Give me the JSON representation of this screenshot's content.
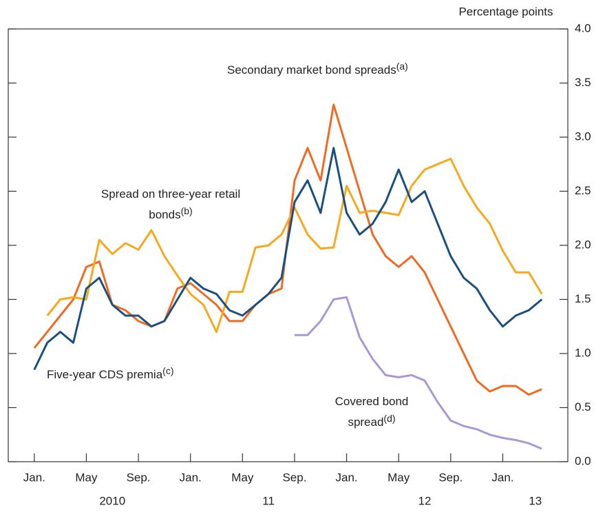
{
  "chart_data": {
    "type": "line",
    "y_axis_label": "Percentage points",
    "x": [
      "2010-01",
      "2010-02",
      "2010-03",
      "2010-04",
      "2010-05",
      "2010-06",
      "2010-07",
      "2010-08",
      "2010-09",
      "2010-10",
      "2010-11",
      "2010-12",
      "2011-01",
      "2011-02",
      "2011-03",
      "2011-04",
      "2011-05",
      "2011-06",
      "2011-07",
      "2011-08",
      "2011-09",
      "2011-10",
      "2011-11",
      "2011-12",
      "2012-01",
      "2012-02",
      "2012-03",
      "2012-04",
      "2012-05",
      "2012-06",
      "2012-07",
      "2012-08",
      "2012-09",
      "2012-10",
      "2012-11",
      "2012-12",
      "2013-01",
      "2013-02",
      "2013-03",
      "2013-04"
    ],
    "xlim": [
      "2009-11",
      "2013-06"
    ],
    "xticks": [
      {
        "value": "2010-01",
        "label": "Jan."
      },
      {
        "value": "2010-05",
        "label": "May"
      },
      {
        "value": "2010-09",
        "label": "Sep."
      },
      {
        "value": "2011-01",
        "label": "Jan."
      },
      {
        "value": "2011-05",
        "label": "May"
      },
      {
        "value": "2011-09",
        "label": "Sep."
      },
      {
        "value": "2012-01",
        "label": "Jan."
      },
      {
        "value": "2012-05",
        "label": "May"
      },
      {
        "value": "2012-09",
        "label": "Sep."
      },
      {
        "value": "2013-01",
        "label": "Jan."
      }
    ],
    "year_labels": [
      {
        "value": "2010",
        "label": "2010"
      },
      {
        "value": "2011",
        "label": "11"
      },
      {
        "value": "2012",
        "label": "12"
      },
      {
        "value": "2013",
        "label": "13"
      }
    ],
    "ylim": [
      0,
      4
    ],
    "yticks": [
      {
        "value": 0,
        "label": "0.0"
      },
      {
        "value": 0.5,
        "label": "0.5"
      },
      {
        "value": 1,
        "label": "1.0"
      },
      {
        "value": 1.5,
        "label": "1.5"
      },
      {
        "value": 2,
        "label": "2.0"
      },
      {
        "value": 2.5,
        "label": "2.5"
      },
      {
        "value": 3,
        "label": "3.0"
      },
      {
        "value": 3.5,
        "label": "3.5"
      },
      {
        "value": 4,
        "label": "4.0"
      }
    ],
    "series": [
      {
        "name": "Secondary market bond spreads",
        "note": "(a)",
        "color": "#f26a21",
        "values": [
          1.05,
          1.2,
          1.35,
          1.5,
          1.8,
          1.85,
          1.45,
          1.4,
          1.3,
          1.25,
          1.3,
          1.6,
          1.65,
          1.55,
          1.45,
          1.3,
          1.3,
          1.45,
          1.55,
          1.6,
          2.6,
          2.9,
          2.6,
          3.3,
          2.9,
          2.5,
          2.1,
          1.9,
          1.8,
          1.9,
          1.75,
          1.5,
          1.25,
          1.0,
          0.75,
          0.65,
          0.7,
          0.7,
          0.62,
          0.67
        ]
      },
      {
        "name": "Spread on three-year retail bonds",
        "note": "(b)",
        "color": "#f7a81b",
        "values": [
          null,
          1.35,
          1.5,
          1.52,
          1.5,
          2.05,
          1.92,
          2.02,
          1.96,
          2.14,
          1.9,
          1.72,
          1.55,
          1.45,
          1.2,
          1.57,
          1.57,
          1.98,
          2.0,
          2.1,
          2.35,
          2.1,
          1.97,
          1.98,
          2.55,
          2.3,
          2.32,
          2.3,
          2.28,
          2.55,
          2.7,
          2.75,
          2.8,
          2.55,
          2.35,
          2.2,
          1.95,
          1.75,
          1.75,
          1.55
        ]
      },
      {
        "name": "Five-year CDS premia",
        "note": "(c)",
        "color": "#1a4f7f",
        "values": [
          0.85,
          1.1,
          1.2,
          1.1,
          1.6,
          1.7,
          1.45,
          1.35,
          1.35,
          1.25,
          1.3,
          1.5,
          1.7,
          1.6,
          1.55,
          1.4,
          1.35,
          1.45,
          1.55,
          1.7,
          2.4,
          2.6,
          2.3,
          2.9,
          2.3,
          2.1,
          2.2,
          2.4,
          2.7,
          2.4,
          2.5,
          2.2,
          1.9,
          1.7,
          1.6,
          1.4,
          1.25,
          1.35,
          1.4,
          1.5
        ]
      },
      {
        "name": "Covered bond spread",
        "note": "(d)",
        "color": "#a899d4",
        "values": [
          null,
          null,
          null,
          null,
          null,
          null,
          null,
          null,
          null,
          null,
          null,
          null,
          null,
          null,
          null,
          null,
          null,
          null,
          null,
          null,
          1.17,
          1.17,
          1.3,
          1.5,
          1.52,
          1.15,
          0.95,
          0.8,
          0.78,
          0.8,
          0.75,
          0.55,
          0.38,
          0.33,
          0.3,
          0.25,
          0.22,
          0.2,
          0.17,
          0.12
        ]
      }
    ]
  }
}
